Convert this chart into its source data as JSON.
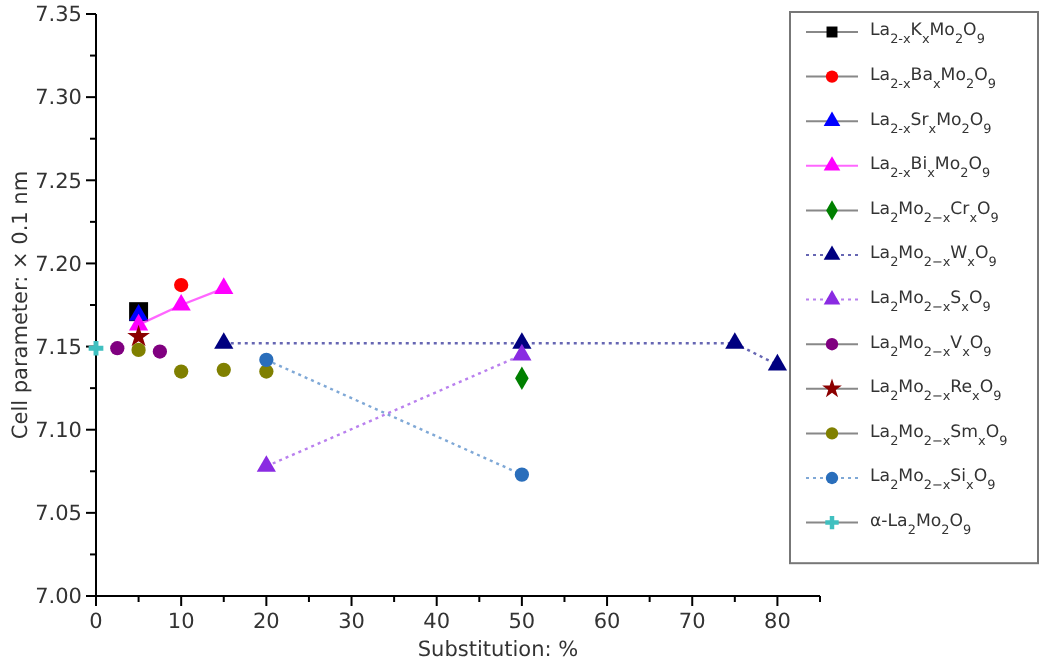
{
  "chart_data": {
    "type": "scatter",
    "xlabel": "Substitution: %",
    "ylabel": "Cell parameter: × 0.1 nm",
    "xlim": [
      0,
      85
    ],
    "ylim": [
      7.0,
      7.35
    ],
    "xticks": [
      0,
      {
        "value": 5,
        "label": null
      },
      10,
      {
        "value": 15,
        "label": null
      },
      20,
      {
        "value": 25,
        "label": null
      },
      30,
      {
        "value": 35,
        "label": null
      },
      40,
      {
        "value": 45,
        "label": null
      },
      50,
      {
        "value": 55,
        "label": null
      },
      60,
      {
        "value": 65,
        "label": null
      },
      70,
      {
        "value": 75,
        "label": null
      },
      80,
      {
        "value": 85,
        "label": null
      }
    ],
    "yticks": [
      {
        "value": 7.0,
        "label": "7.00"
      },
      {
        "value": 7.025,
        "label": null
      },
      {
        "value": 7.05,
        "label": "7.05"
      },
      {
        "value": 7.075,
        "label": null
      },
      {
        "value": 7.1,
        "label": "7.10"
      },
      {
        "value": 7.125,
        "label": null
      },
      {
        "value": 7.15,
        "label": "7.15"
      },
      {
        "value": 7.175,
        "label": null
      },
      {
        "value": 7.2,
        "label": "7.20"
      },
      {
        "value": 7.225,
        "label": null
      },
      {
        "value": 7.25,
        "label": "7.25"
      },
      {
        "value": 7.275,
        "label": null
      },
      {
        "value": 7.3,
        "label": "7.30"
      },
      {
        "value": 7.325,
        "label": null
      },
      {
        "value": 7.35,
        "label": "7.35"
      }
    ],
    "grid": false,
    "legend": "top right",
    "series": [
      {
        "name": "La$_{2-x}$K$_{x}$Mo$_{2}$O$_{9}$",
        "marker": "square",
        "color": "#000000",
        "x": [
          5
        ],
        "values": [
          7.171
        ]
      },
      {
        "name": "La$_{2-x}$Ba$_{x}$Mo$_{2}$O$_{9}$",
        "marker": "circle",
        "color": "#ff0000",
        "x": [
          10
        ],
        "values": [
          7.187
        ]
      },
      {
        "name": "La$_{2-x}$Sr$_{x}$Mo$_{2}$O$_{9}$",
        "marker": "triangle",
        "color": "#0000ff",
        "x": [
          5
        ],
        "values": [
          7.169
        ]
      },
      {
        "name": "La$_{2-x}$Bi$_{x}$Mo$_{2}$O$_{9}$",
        "type": "line",
        "line_style": "solid",
        "marker": "triangle",
        "color": "#ff00ff",
        "x": [
          5,
          10,
          15
        ],
        "values": [
          7.163,
          7.175,
          7.185
        ]
      },
      {
        "name": "La$_{2}$Mo$_{2−x}$Cr$_{x}$O$_{9}$",
        "marker": "diamond",
        "color": "#008000",
        "x": [
          50
        ],
        "values": [
          7.131
        ]
      },
      {
        "name": "La$_{2}$Mo$_{2−x}$W$_{x}$O$_{9}$",
        "type": "line",
        "line_style": "dotted",
        "marker": "triangle",
        "color": "#000080",
        "x": [
          15,
          50,
          75,
          80
        ],
        "values": [
          7.152,
          7.152,
          7.152,
          7.139
        ]
      },
      {
        "name": "La$_{2}$Mo$_{2−x}$S$_{x}$O$_{9}$",
        "type": "line",
        "line_style": "dotted",
        "marker": "triangle",
        "color": "#8a2be2",
        "x": [
          20,
          50
        ],
        "values": [
          7.078,
          7.145
        ]
      },
      {
        "name": "La$_{2}$Mo$_{2−x}$V$_{x}$O$_{9}$",
        "marker": "circle",
        "color": "#800080",
        "x": [
          2.5,
          5,
          7.5
        ],
        "values": [
          7.149,
          null,
          7.147
        ]
      },
      {
        "name": "La$_{2}$Mo$_{2−x}$Re$_{x}$O$_{9}$",
        "marker": "star",
        "color": "#8b0000",
        "x": [
          5
        ],
        "values": [
          7.156
        ]
      },
      {
        "name": "La$_{2}$Mo$_{2−x}$Sm$_{x}$O$_{9}$",
        "marker": "circle",
        "color": "#808000",
        "x": [
          5,
          10,
          15,
          20
        ],
        "values": [
          7.148,
          7.135,
          7.136,
          7.135
        ]
      },
      {
        "name": "La$_{2}$Mo$_{2−x}$Si$_{x}$O$_{9}$",
        "type": "line",
        "line_style": "dotted",
        "marker": "circle",
        "color": "#2a6ebb",
        "x": [
          20,
          50
        ],
        "values": [
          7.142,
          7.073
        ]
      },
      {
        "name": "α-La$_{2}$Mo$_{2}$O$_{9}$",
        "marker": "cross",
        "color": "#40c0c0",
        "x": [
          0
        ],
        "values": [
          7.149
        ]
      }
    ]
  }
}
